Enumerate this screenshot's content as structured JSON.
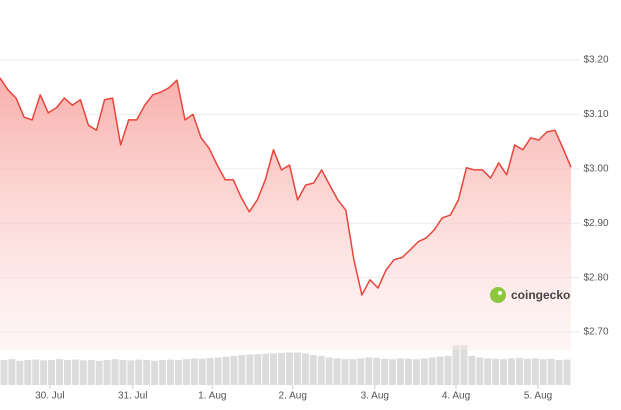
{
  "chart_data": {
    "type": "area",
    "series": [
      {
        "color": "#e8453c",
        "values": [
          3.167,
          3.145,
          3.13,
          3.095,
          3.09,
          3.136,
          3.103,
          3.112,
          3.13,
          3.117,
          3.127,
          3.08,
          3.071,
          3.127,
          3.13,
          3.044,
          3.09,
          3.09,
          3.117,
          3.136,
          3.141,
          3.149,
          3.163,
          3.09,
          3.1,
          3.057,
          3.038,
          3.007,
          2.98,
          2.98,
          2.947,
          2.921,
          2.943,
          2.98,
          3.035,
          2.998,
          3.007,
          2.943,
          2.97,
          2.974,
          2.998,
          2.97,
          2.943,
          2.924,
          2.833,
          2.768,
          2.796,
          2.781,
          2.814,
          2.833,
          2.837,
          2.851,
          2.866,
          2.873,
          2.888,
          2.91,
          2.915,
          2.943,
          3.002,
          2.998,
          2.998,
          2.983,
          3.011,
          2.989,
          3.044,
          3.035,
          3.057,
          3.053,
          3.068,
          3.071,
          3.038,
          3.003
        ]
      }
    ],
    "volume": {
      "color": "#dcdcdc",
      "values": [
        60,
        62,
        58,
        60,
        61,
        59,
        60,
        62,
        60,
        61,
        59,
        60,
        58,
        60,
        62,
        60,
        59,
        61,
        60,
        58,
        60,
        61,
        60,
        62,
        64,
        63,
        65,
        66,
        68,
        70,
        72,
        73,
        74,
        75,
        76,
        77,
        78,
        78,
        76,
        72,
        70,
        66,
        64,
        62,
        62,
        64,
        66,
        65,
        63,
        62,
        64,
        63,
        62,
        64,
        66,
        68,
        70,
        95,
        96,
        70,
        66,
        64,
        63,
        62,
        64,
        65,
        63,
        64,
        62,
        63,
        60,
        61
      ]
    },
    "xlim": [
      0,
      71
    ],
    "xticks": [
      {
        "value": 6.2,
        "label": "30. Jul"
      },
      {
        "value": 16.5,
        "label": "31. Jul"
      },
      {
        "value": 26.4,
        "label": "1. Aug"
      },
      {
        "value": 36.4,
        "label": "2. Aug"
      },
      {
        "value": 46.6,
        "label": "3. Aug"
      },
      {
        "value": 56.7,
        "label": "4. Aug"
      },
      {
        "value": 66.9,
        "label": "5. Aug"
      }
    ],
    "ylim": [
      2.667,
      3.2368
    ],
    "yticks": [
      {
        "value": 2.7,
        "label": "$2.70"
      },
      {
        "value": 2.8,
        "label": "$2.80"
      },
      {
        "value": 2.9,
        "label": "$2.90"
      },
      {
        "value": 3.0,
        "label": "$3.00"
      },
      {
        "value": 3.1,
        "label": "$3.10"
      },
      {
        "value": 3.2,
        "label": "$3.20"
      }
    ],
    "grid": true
  },
  "watermark": "coingecko"
}
